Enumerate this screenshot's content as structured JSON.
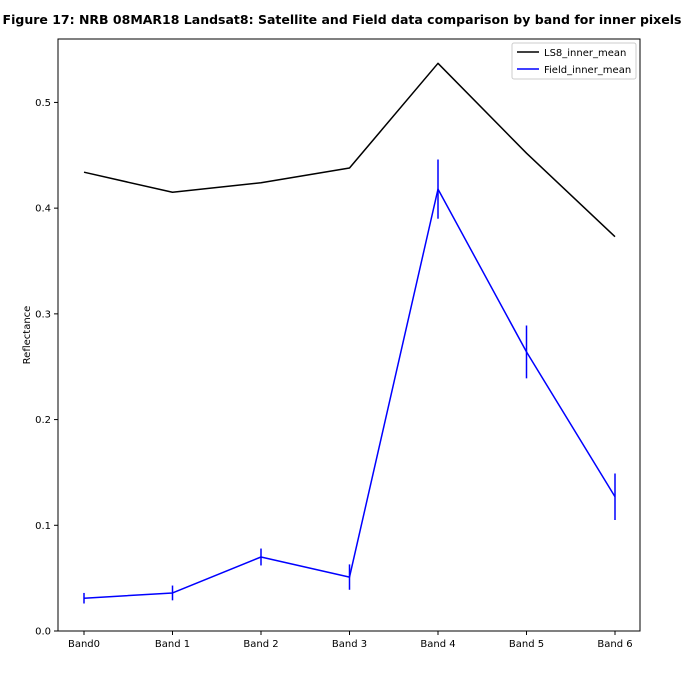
{
  "chart_data": {
    "type": "line",
    "title": "Figure 17: NRB 08MAR18  Landsat8: Satellite and Field data comparison by band for inner pixels",
    "xlabel": "",
    "ylabel": "Reflectance",
    "categories": [
      "Band0",
      "Band 1",
      "Band 2",
      "Band 3",
      "Band 4",
      "Band 5",
      "Band 6"
    ],
    "ylim": [
      0.0,
      0.56
    ],
    "yticks": [
      0.0,
      0.1,
      0.2,
      0.3,
      0.4,
      0.5
    ],
    "ytick_labels": [
      "0.0",
      "0.1",
      "0.2",
      "0.3",
      "0.4",
      "0.5"
    ],
    "grid": false,
    "legend_position": "top-right",
    "series": [
      {
        "name": "LS8_inner_mean",
        "color": "#000000",
        "values": [
          0.434,
          0.415,
          0.424,
          0.438,
          0.537,
          0.452,
          0.373
        ]
      },
      {
        "name": "Field_inner_mean",
        "color": "#0000ff",
        "values": [
          0.031,
          0.036,
          0.07,
          0.051,
          0.418,
          0.264,
          0.127
        ],
        "error": [
          0.005,
          0.007,
          0.008,
          0.012,
          0.028,
          0.025,
          0.022
        ]
      }
    ]
  }
}
